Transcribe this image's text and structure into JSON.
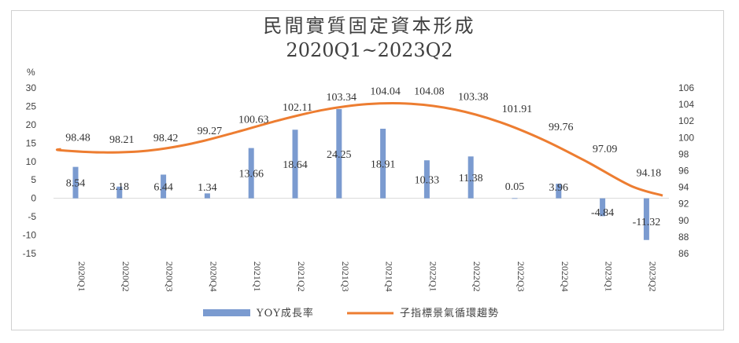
{
  "chart_data": {
    "type": "bar+line",
    "title": "民間實質固定資本形成",
    "subtitle": "2020Q1~2023Q2",
    "y_left_unit": "%",
    "y_left_ticks": [
      "30",
      "25",
      "20",
      "15",
      "10",
      "5",
      "0",
      "-5",
      "-10",
      "-15"
    ],
    "y_left_range": [
      -15,
      30
    ],
    "y_right_ticks": [
      "106",
      "104",
      "102",
      "100",
      "98",
      "96",
      "94",
      "92",
      "90",
      "88",
      "86"
    ],
    "y_right_range": [
      86,
      106
    ],
    "categories": [
      "2020Q1",
      "2020Q2",
      "2020Q3",
      "2020Q4",
      "2021Q1",
      "2021Q2",
      "2021Q3",
      "2021Q4",
      "2022Q1",
      "2022Q2",
      "2022Q3",
      "2022Q4",
      "2023Q1",
      "2023Q2"
    ],
    "series": [
      {
        "name": "YOY成長率",
        "kind": "bar",
        "axis": "left",
        "color": "#7b9bd0",
        "values": [
          8.54,
          3.18,
          6.44,
          1.34,
          13.66,
          18.64,
          24.25,
          18.91,
          10.33,
          11.38,
          0.05,
          3.96,
          -4.84,
          -11.32
        ],
        "labels": [
          "8.54",
          "3.18",
          "6.44",
          "1.34",
          "13.66",
          "18.64",
          "24.25",
          "18.91",
          "10.33",
          "11.38",
          "0.05",
          "3.96",
          "-4.84",
          "-11.32"
        ]
      },
      {
        "name": "子指標景氣循環趨勢",
        "kind": "line",
        "axis": "right",
        "color": "#ed7d31",
        "values": [
          98.48,
          98.21,
          98.42,
          99.27,
          100.63,
          102.11,
          103.34,
          104.04,
          104.08,
          103.38,
          101.91,
          99.76,
          97.09,
          94.18
        ],
        "labels": [
          "98.48",
          "98.21",
          "98.42",
          "99.27",
          "100.63",
          "102.11",
          "103.34",
          "104.04",
          "104.08",
          "103.38",
          "101.91",
          "99.76",
          "97.09",
          "94.18"
        ]
      }
    ],
    "grid": false,
    "legend_position": "bottom"
  }
}
